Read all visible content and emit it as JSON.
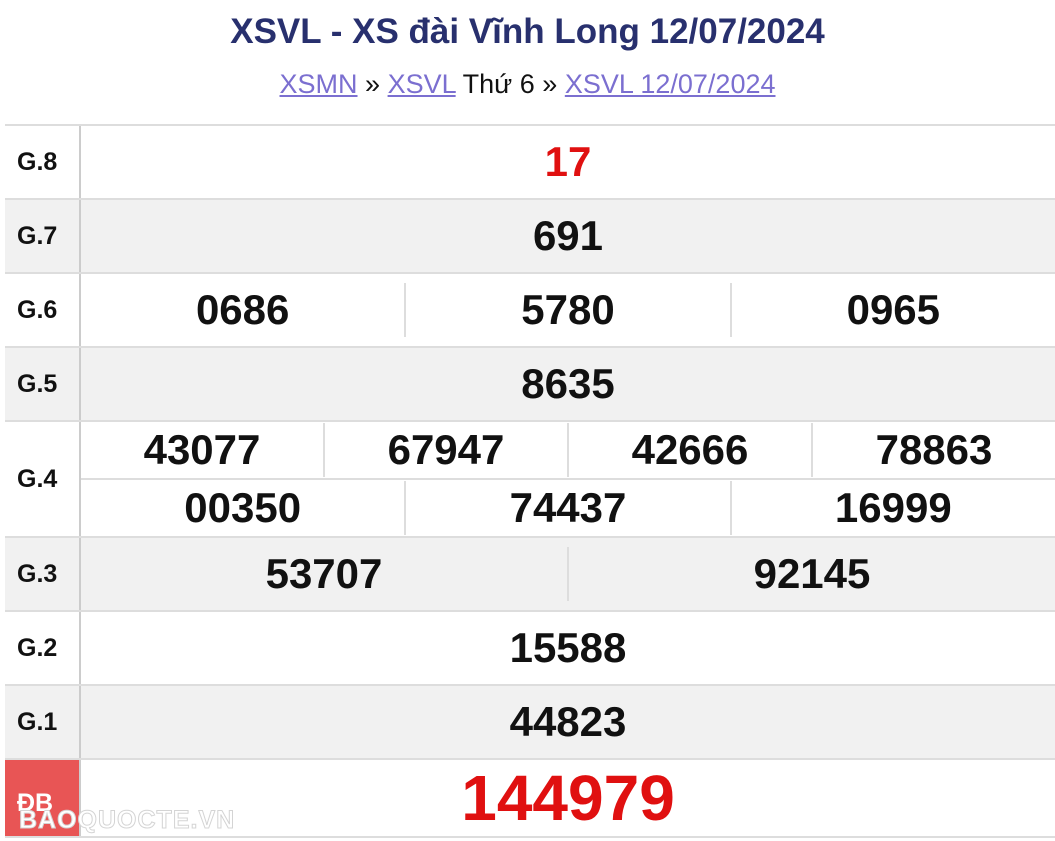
{
  "title": "XSVL - XS đài Vĩnh Long 12/07/2024",
  "breadcrumb": {
    "link1": "XSMN",
    "sep1": "»",
    "link2": "XSVL",
    "day": "Thứ 6",
    "sep2": "»",
    "link3": "XSVL 12/07/2024"
  },
  "prizes": [
    {
      "label": "G.8",
      "values": [
        "17"
      ]
    },
    {
      "label": "G.7",
      "values": [
        "691"
      ]
    },
    {
      "label": "G.6",
      "values": [
        "0686",
        "5780",
        "0965"
      ]
    },
    {
      "label": "G.5",
      "values": [
        "8635"
      ]
    },
    {
      "label": "G.4",
      "values": [
        "43077",
        "67947",
        "42666",
        "78863",
        "00350",
        "74437",
        "16999"
      ]
    },
    {
      "label": "G.3",
      "values": [
        "53707",
        "92145"
      ]
    },
    {
      "label": "G.2",
      "values": [
        "15588"
      ]
    },
    {
      "label": "G.1",
      "values": [
        "44823"
      ]
    },
    {
      "label": "ĐB",
      "values": [
        "144979"
      ]
    }
  ],
  "watermark": "BAOQUOCTE.VN",
  "colors": {
    "title": "#28306e",
    "link": "#7b6fd0",
    "highlight": "#e01010",
    "special_bg": "#e85555"
  }
}
